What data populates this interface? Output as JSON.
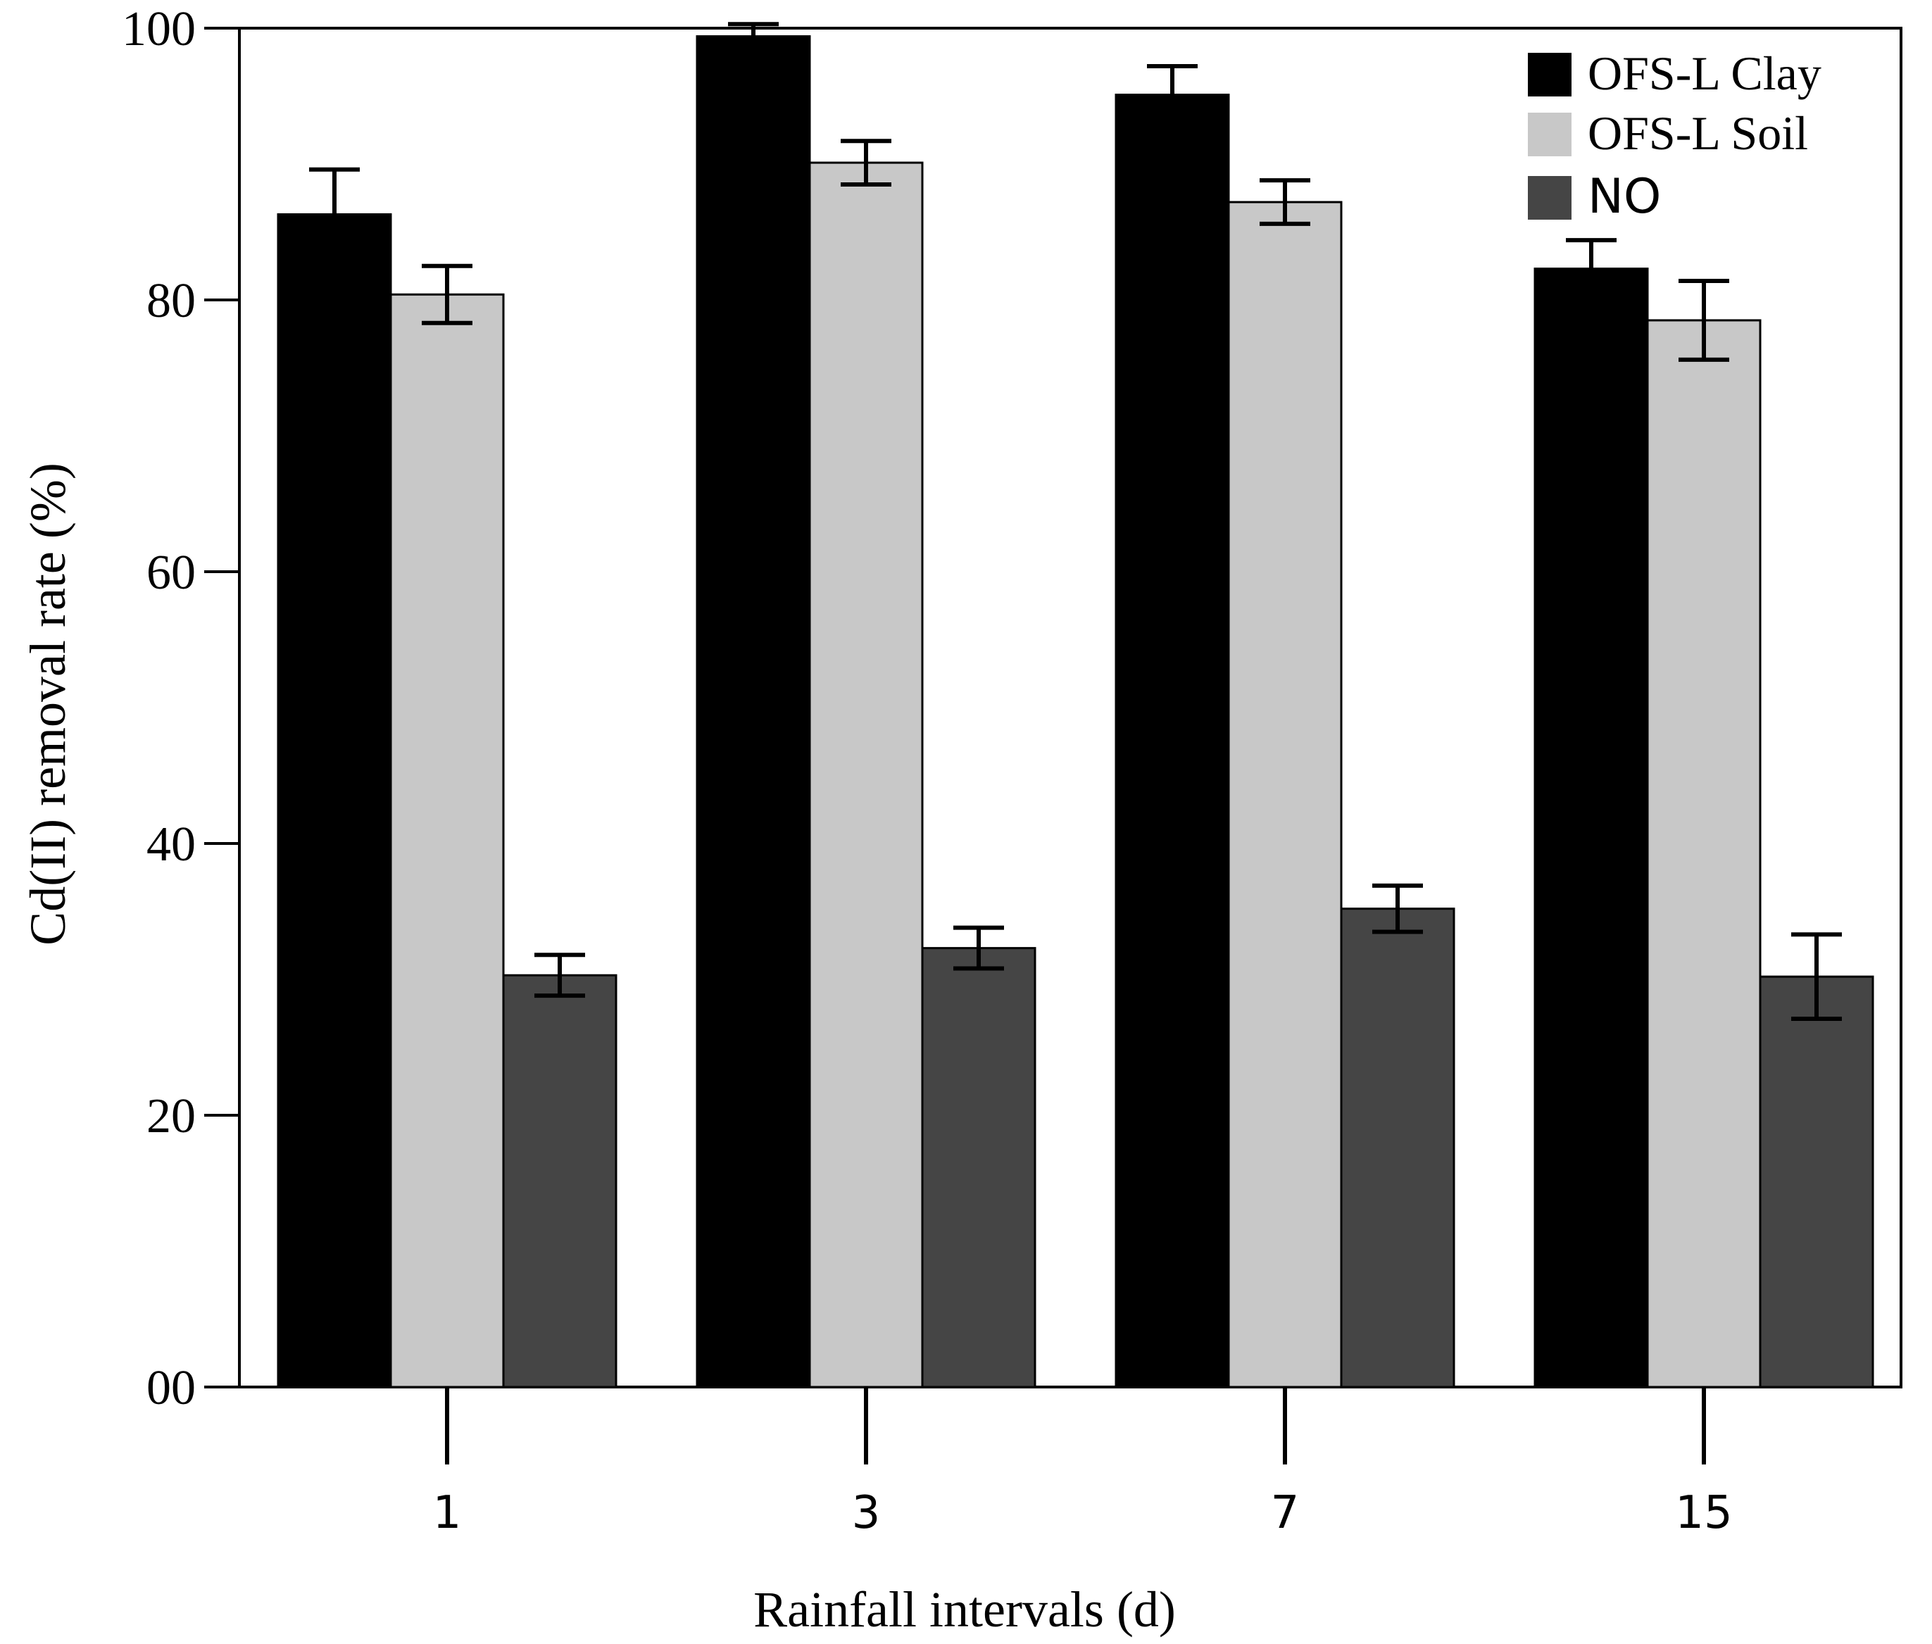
{
  "chart_data": {
    "type": "bar",
    "title": "",
    "xlabel": "Rainfall intervals (d)",
    "ylabel": "Cd(II) removal rate (%)",
    "categories": [
      "1",
      "3",
      "7",
      "15"
    ],
    "ylim": [
      0,
      100
    ],
    "yticks": [
      0,
      20,
      40,
      60,
      80,
      100
    ],
    "ytick_labels": [
      "00",
      "20",
      "40",
      "60",
      "80",
      "100"
    ],
    "grid": false,
    "legend_position": "top-right",
    "series": [
      {
        "name": "OFS-L Clay",
        "color": "#000000",
        "values": [
          86.3,
          99.4,
          95.1,
          82.3
        ],
        "errors": [
          3.3,
          0.9,
          2.1,
          2.1
        ]
      },
      {
        "name": "OFS-L Soil",
        "color": "#c8c8c8",
        "values": [
          80.4,
          90.1,
          87.2,
          78.5
        ],
        "errors": [
          2.1,
          1.6,
          1.6,
          2.9
        ]
      },
      {
        "name": "NO",
        "color": "#454545",
        "values": [
          30.3,
          32.3,
          35.2,
          30.2
        ],
        "errors": [
          1.5,
          1.5,
          1.7,
          3.1
        ]
      }
    ]
  }
}
